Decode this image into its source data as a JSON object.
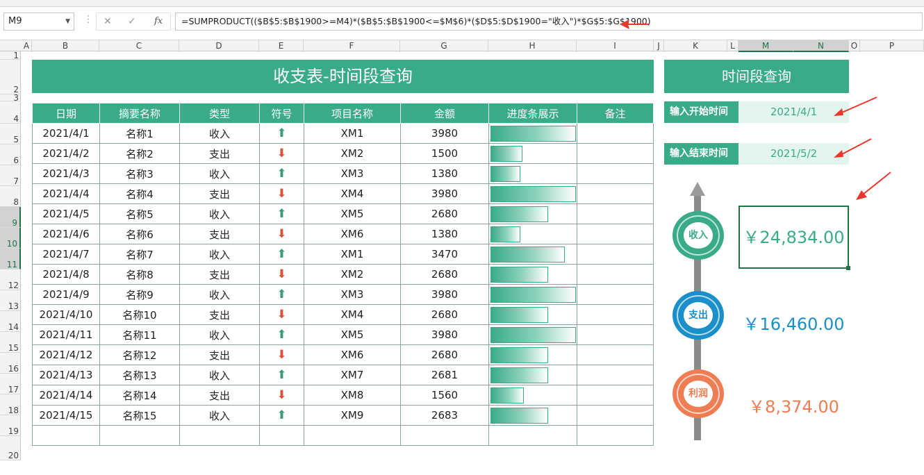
{
  "formula_bar": {
    "name_box": "M9",
    "formula": "=SUMPRODUCT(($B$5:$B$1900>=M4)*($B$5:$B$1900<=$M$6)*($D$5:$D$1900=\"收入\")*$G$5:$G$1900)"
  },
  "columns": [
    "A",
    "B",
    "C",
    "D",
    "E",
    "F",
    "G",
    "H",
    "I",
    "J",
    "K",
    "L",
    "M",
    "N",
    "O",
    "P"
  ],
  "rows": [
    "1",
    "2",
    "3",
    "4",
    "5",
    "6",
    "7",
    "8",
    "9",
    "10",
    "11",
    "12",
    "13",
    "14",
    "15",
    "16",
    "17",
    "18",
    "19",
    "20"
  ],
  "title": "收支表-时间段查询",
  "side_title": "时间段查询",
  "headers": [
    "日期",
    "摘要名称",
    "类型",
    "符号",
    "项目名称",
    "金额",
    "进度条展示",
    "备注"
  ],
  "records": [
    {
      "date": "2021/4/1",
      "name": "名称1",
      "type": "收入",
      "dir": "up",
      "item": "XM1",
      "amount": "3980",
      "progress": 1.0
    },
    {
      "date": "2021/4/2",
      "name": "名称2",
      "type": "支出",
      "dir": "down",
      "item": "XM2",
      "amount": "1500",
      "progress": 0.377
    },
    {
      "date": "2021/4/3",
      "name": "名称3",
      "type": "收入",
      "dir": "up",
      "item": "XM3",
      "amount": "1380",
      "progress": 0.347
    },
    {
      "date": "2021/4/4",
      "name": "名称4",
      "type": "支出",
      "dir": "down",
      "item": "XM4",
      "amount": "3980",
      "progress": 1.0
    },
    {
      "date": "2021/4/5",
      "name": "名称5",
      "type": "收入",
      "dir": "up",
      "item": "XM5",
      "amount": "2680",
      "progress": 0.673
    },
    {
      "date": "2021/4/6",
      "name": "名称6",
      "type": "支出",
      "dir": "down",
      "item": "XM6",
      "amount": "1380",
      "progress": 0.347
    },
    {
      "date": "2021/4/7",
      "name": "名称7",
      "type": "收入",
      "dir": "up",
      "item": "XM1",
      "amount": "3470",
      "progress": 0.872
    },
    {
      "date": "2021/4/8",
      "name": "名称8",
      "type": "支出",
      "dir": "down",
      "item": "XM2",
      "amount": "2680",
      "progress": 0.673
    },
    {
      "date": "2021/4/9",
      "name": "名称9",
      "type": "收入",
      "dir": "up",
      "item": "XM3",
      "amount": "3980",
      "progress": 1.0
    },
    {
      "date": "2021/4/10",
      "name": "名称10",
      "type": "支出",
      "dir": "down",
      "item": "XM4",
      "amount": "2680",
      "progress": 0.673
    },
    {
      "date": "2021/4/11",
      "name": "名称11",
      "type": "收入",
      "dir": "up",
      "item": "XM5",
      "amount": "3980",
      "progress": 1.0
    },
    {
      "date": "2021/4/12",
      "name": "名称12",
      "type": "支出",
      "dir": "down",
      "item": "XM6",
      "amount": "2680",
      "progress": 0.673
    },
    {
      "date": "2021/4/13",
      "name": "名称13",
      "type": "收入",
      "dir": "up",
      "item": "XM7",
      "amount": "2681",
      "progress": 0.674
    },
    {
      "date": "2021/4/14",
      "name": "名称14",
      "type": "支出",
      "dir": "down",
      "item": "XM8",
      "amount": "1560",
      "progress": 0.392
    },
    {
      "date": "2021/4/15",
      "name": "名称15",
      "type": "收入",
      "dir": "up",
      "item": "XM9",
      "amount": "2683",
      "progress": 0.674
    }
  ],
  "query": {
    "start_label": "输入开始时间",
    "start_value": "2021/4/1",
    "end_label": "输入结束时间",
    "end_value": "2021/5/2"
  },
  "summary": {
    "income_label": "收入",
    "income_value": "￥24,834.00",
    "expense_label": "支出",
    "expense_value": "￥16,460.00",
    "profit_label": "利润",
    "profit_value": "￥8,374.00"
  },
  "colors": {
    "accent": "#3aab88",
    "expense": "#1a8fc9",
    "profit": "#ef7d53",
    "arrow": "#e8372c"
  }
}
